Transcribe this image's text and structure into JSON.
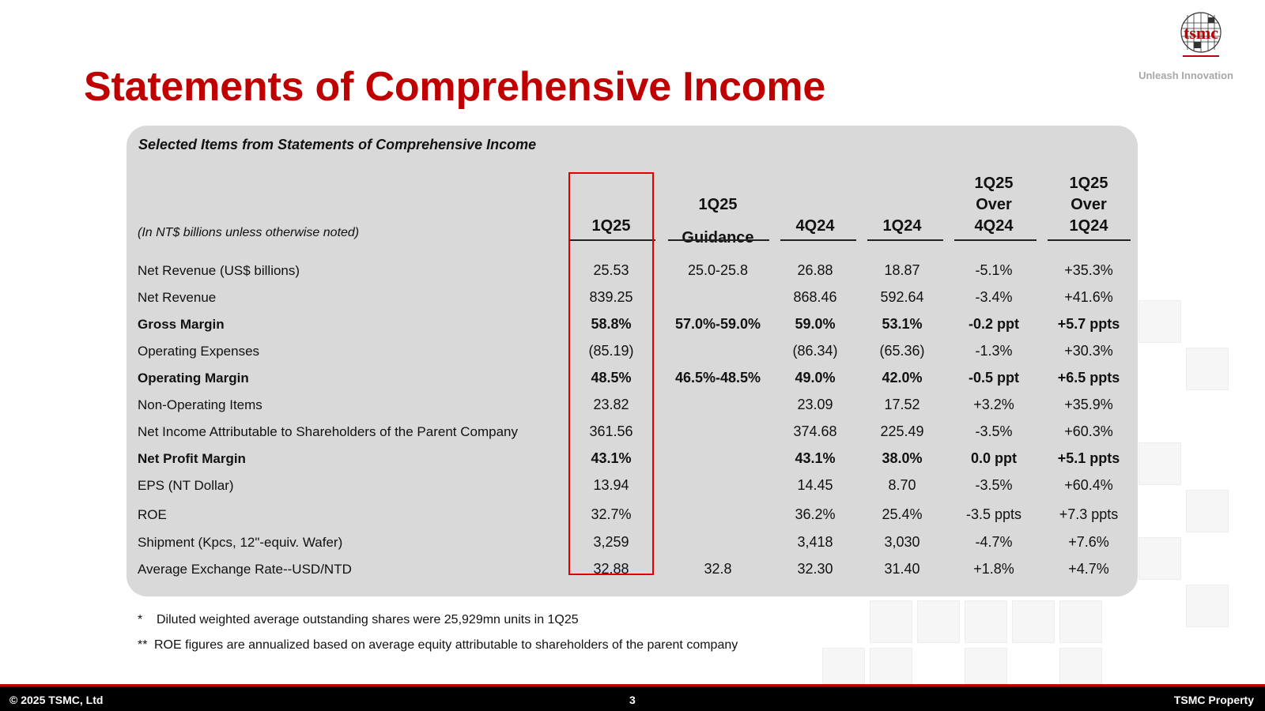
{
  "header": {
    "title": "Statements of Comprehensive Income",
    "logo_text": "tsmc",
    "tagline": "Unleash Innovation"
  },
  "table": {
    "panel_title": "Selected Items from Statements of Comprehensive Income",
    "unit_note": "(In NT$ billions unless otherwise noted)",
    "columns": [
      [
        "1Q25"
      ],
      [
        "1Q25",
        "Guidance"
      ],
      [
        "4Q24"
      ],
      [
        "1Q24"
      ],
      [
        "1Q25",
        "Over",
        "4Q24"
      ],
      [
        "1Q25",
        "Over",
        "1Q24"
      ]
    ],
    "rows": [
      {
        "label": "Net Revenue (US$ billions)",
        "bold": false,
        "values": [
          "25.53",
          "25.0-25.8",
          "26.88",
          "18.87",
          "-5.1%",
          "+35.3%"
        ]
      },
      {
        "label": "Net Revenue",
        "bold": false,
        "values": [
          "839.25",
          "",
          "868.46",
          "592.64",
          "-3.4%",
          "+41.6%"
        ]
      },
      {
        "label": "Gross Margin",
        "bold": true,
        "values": [
          "58.8%",
          "57.0%-59.0%",
          "59.0%",
          "53.1%",
          "-0.2 ppt",
          "+5.7 ppts"
        ]
      },
      {
        "label": "Operating Expenses",
        "bold": false,
        "values": [
          "(85.19)",
          "",
          "(86.34)",
          "(65.36)",
          "-1.3%",
          "+30.3%"
        ]
      },
      {
        "label": "Operating Margin",
        "bold": true,
        "values": [
          "48.5%",
          "46.5%-48.5%",
          "49.0%",
          "42.0%",
          "-0.5 ppt",
          "+6.5 ppts"
        ]
      },
      {
        "label": "Non-Operating Items",
        "bold": false,
        "values": [
          "23.82",
          "",
          "23.09",
          "17.52",
          "+3.2%",
          "+35.9%"
        ]
      },
      {
        "label": "Net Income Attributable to Shareholders of the Parent Company",
        "bold": false,
        "values": [
          "361.56",
          "",
          "374.68",
          "225.49",
          "-3.5%",
          "+60.3%"
        ]
      },
      {
        "label": "Net Profit Margin",
        "bold": true,
        "values": [
          "43.1%",
          "",
          "43.1%",
          "38.0%",
          "0.0 ppt",
          "+5.1 ppts"
        ]
      },
      {
        "label": "EPS (NT Dollar)",
        "bold": false,
        "values": [
          "13.94",
          "",
          "14.45",
          "8.70",
          "-3.5%",
          "+60.4%"
        ]
      },
      {
        "label": "ROE",
        "bold": false,
        "values": [
          "32.7%",
          "",
          "36.2%",
          "25.4%",
          "-3.5 ppts",
          "+7.3 ppts"
        ]
      },
      {
        "label": "Shipment (Kpcs, 12\"-equiv. Wafer)",
        "bold": false,
        "values": [
          "3,259",
          "",
          "3,418",
          "3,030",
          "-4.7%",
          "+7.6%"
        ]
      },
      {
        "label": "Average Exchange Rate--USD/NTD",
        "bold": false,
        "values": [
          "32.88",
          "32.8",
          "32.30",
          "31.40",
          "+1.8%",
          "+4.7%"
        ]
      }
    ]
  },
  "footnotes": [
    {
      "mark": "*",
      "text": "Diluted weighted average outstanding shares were 25,929mn units in 1Q25"
    },
    {
      "mark": "**",
      "text": "ROE figures are annualized based on average equity attributable to shareholders of the parent company"
    }
  ],
  "footer": {
    "copyright": "© 2025 TSMC, Ltd",
    "page_number": "3",
    "property": "TSMC Property"
  },
  "colors": {
    "title_red": "#c00000",
    "panel_gray": "#d9d9d9",
    "highlight_border": "#e00000",
    "footer_bg": "#000000"
  }
}
